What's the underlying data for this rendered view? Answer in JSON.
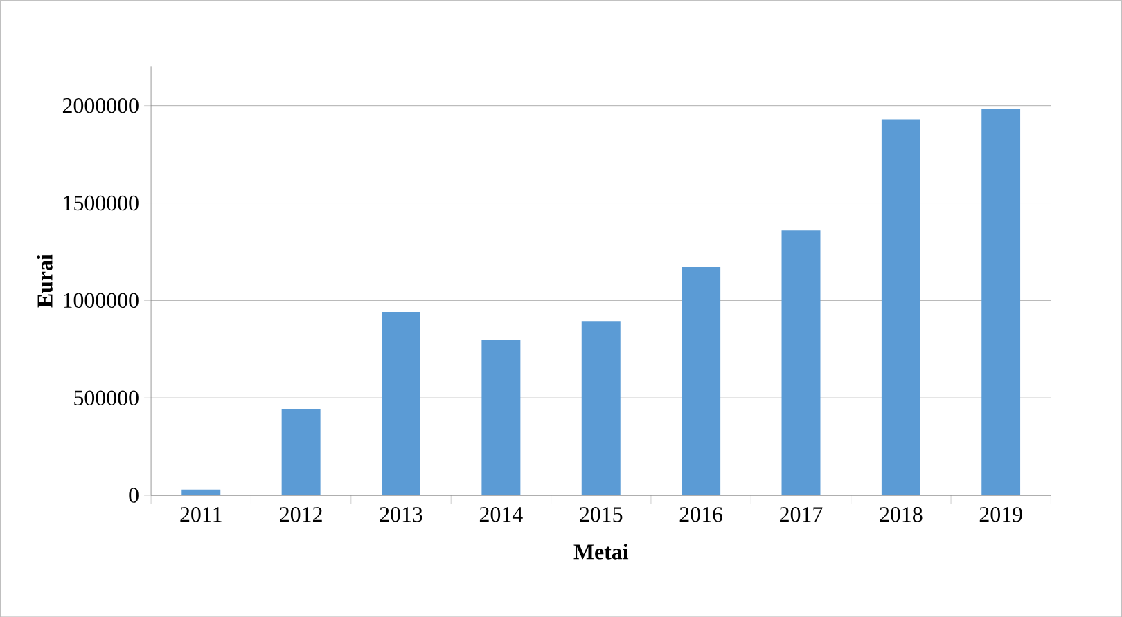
{
  "chart_data": {
    "type": "bar",
    "xlabel": "Metai",
    "ylabel": "Eurai",
    "categories": [
      "2011",
      "2012",
      "2013",
      "2014",
      "2015",
      "2016",
      "2017",
      "2018",
      "2019"
    ],
    "values": [
      29000,
      440000,
      941000,
      799000,
      894000,
      1172000,
      1359000,
      1930000,
      1982000
    ],
    "color": "#5b9bd5",
    "ylim": [
      0,
      2200000
    ],
    "yticks": [
      0,
      500000,
      1000000,
      1500000,
      2000000
    ],
    "grid": "y"
  }
}
